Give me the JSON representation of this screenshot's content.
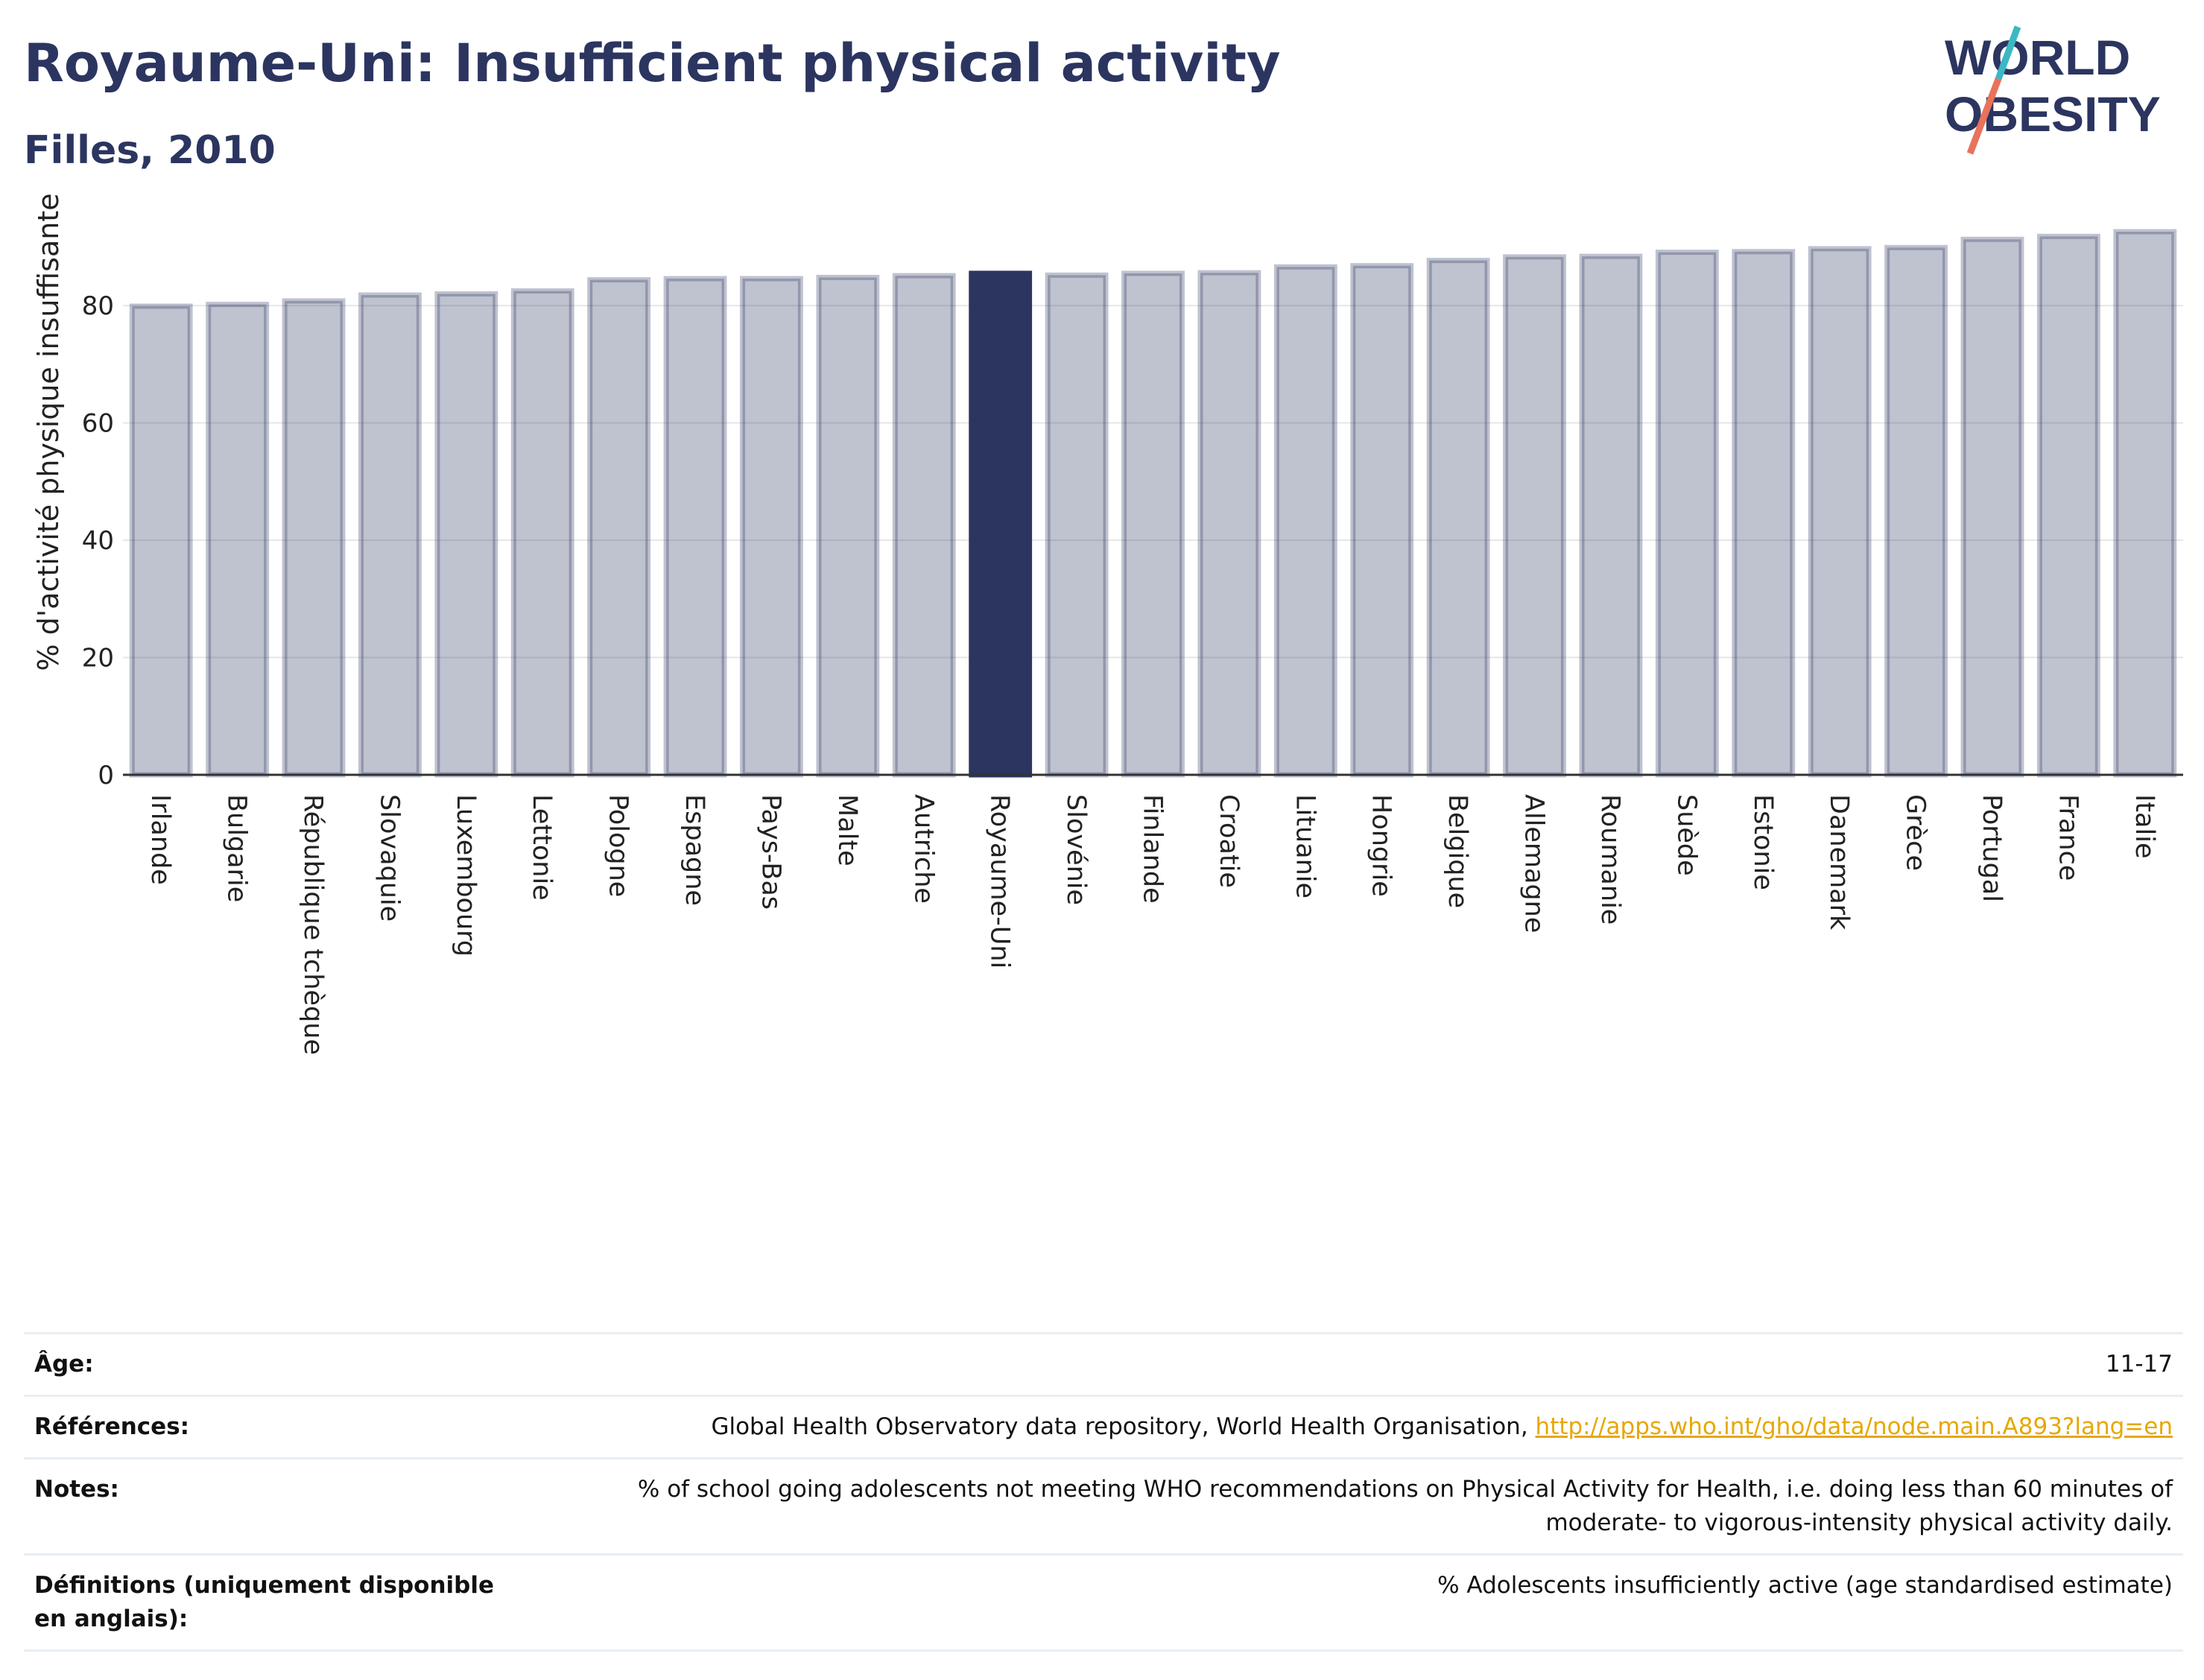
{
  "header": {
    "title": "Royaume-Uni: Insufficient physical activity",
    "subtitle": "Filles, 2010"
  },
  "logo": {
    "line1": "WORLD",
    "line2": "OBESITY",
    "colors": {
      "text": "#2b3560",
      "slash_top": "#3bb8c3",
      "slash_bottom": "#e8735a"
    }
  },
  "colors": {
    "bar": "#2b3560",
    "bar_highlight": "#2b3560",
    "grid": "#e6e6e6",
    "axis": "#333333"
  },
  "chart_data": {
    "type": "bar",
    "title": "Royaume-Uni: Insufficient physical activity",
    "subtitle": "Filles, 2010",
    "xlabel": "",
    "ylabel": "% d'activité physique insuffisante",
    "ylim": [
      0,
      94
    ],
    "yticks": [
      0,
      20,
      40,
      60,
      80
    ],
    "grid": true,
    "highlight": "Royaume-Uni",
    "categories": [
      "Irlande",
      "Bulgarie",
      "République tchèque",
      "Slovaquie",
      "Luxembourg",
      "Lettonie",
      "Pologne",
      "Espagne",
      "Pays-Bas",
      "Malte",
      "Autriche",
      "Royaume-Uni",
      "Slovénie",
      "Finlande",
      "Croatie",
      "Lituanie",
      "Hongrie",
      "Belgique",
      "Allemagne",
      "Roumanie",
      "Suède",
      "Estonie",
      "Danemark",
      "Grèce",
      "Portugal",
      "France",
      "Italie"
    ],
    "values": [
      79.9,
      80.2,
      80.8,
      81.8,
      82.0,
      82.5,
      84.4,
      84.6,
      84.6,
      84.8,
      85.1,
      85.5,
      85.2,
      85.5,
      85.6,
      86.6,
      86.8,
      87.7,
      88.3,
      88.4,
      89.1,
      89.2,
      89.7,
      89.9,
      91.3,
      91.8,
      92.6
    ]
  },
  "meta": [
    {
      "key": "Âge:",
      "value": "11-17"
    },
    {
      "key": "Références:",
      "value": "Global Health Observatory data repository, World Health Organisation, ",
      "link": "http://apps.who.int/gho/data/node.main.A893?lang=en"
    },
    {
      "key": "Notes:",
      "value": "% of school going adolescents not meeting WHO recommendations on Physical Activity for Health, i.e. doing less than 60 minutes of moderate- to vigorous-intensity physical activity daily."
    },
    {
      "key": "Définitions (uniquement disponible en anglais):",
      "value": "% Adolescents insufficiently active (age standardised estimate)"
    }
  ]
}
